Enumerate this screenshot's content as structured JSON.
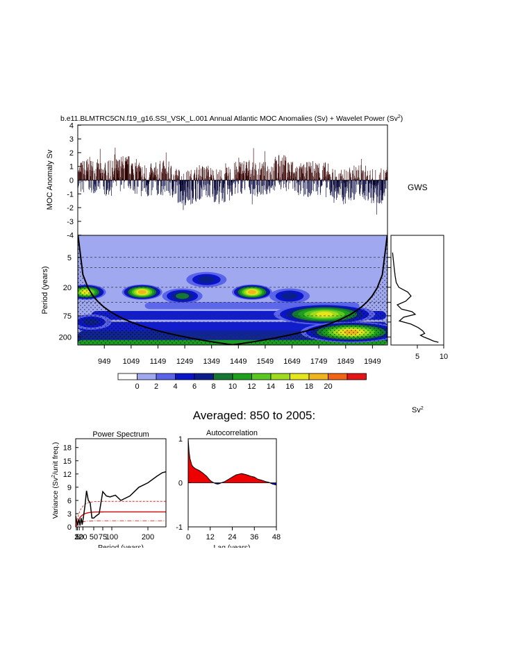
{
  "title": {
    "prefix": "b.e11.BLMTRC5CN.f19_g16.SSI_VSK_L.001 Annual Atlantic MOC Anomalies (Sv) + Wavelet Power (Sv",
    "sup": "2",
    "suffix": ")"
  },
  "gws_label": "GWS",
  "sv2_label": {
    "base": "Sv",
    "sup": "2"
  },
  "averaged_title": "Averaged: 850 to 2005:",
  "colors": {
    "positive": "#cc0000",
    "negative": "#0000cc",
    "contour_bg": "#a0a8f0"
  },
  "chart_data": [
    {
      "type": "bar",
      "name": "moc-anomaly",
      "ylabel": "MOC Anomaly Sv",
      "ylim": [
        -4,
        4
      ],
      "yticks": [
        "4",
        "3",
        "2",
        "1",
        "0",
        "-1",
        "-2",
        "-3",
        "-4"
      ],
      "xlim": [
        850,
        2005
      ],
      "series_note": "annual anomaly bars, red above zero, blue below zero"
    },
    {
      "type": "heatmap",
      "name": "wavelet-power",
      "ylabel": "Period (years)",
      "yticks": [
        {
          "label": "5",
          "value": 5
        },
        {
          "label": "20",
          "value": 20
        },
        {
          "label": "75",
          "value": 75
        },
        {
          "label": "200",
          "value": 200
        }
      ],
      "xticks": [
        "949",
        "1049",
        "1149",
        "1249",
        "1349",
        "1449",
        "1549",
        "1649",
        "1749",
        "1849",
        "1949"
      ],
      "xlim": [
        850,
        2005
      ],
      "colorbar": {
        "labels": [
          "0",
          "2",
          "4",
          "6",
          "8",
          "10",
          "12",
          "14",
          "16",
          "18",
          "20"
        ],
        "colors": [
          "#ffffff",
          "#a0a8f0",
          "#5a64e8",
          "#0a14c8",
          "#0a1e8c",
          "#147832",
          "#1ea01e",
          "#5ac81e",
          "#a0dc1e",
          "#e6e61e",
          "#f0b41e",
          "#f06414",
          "#e61414"
        ]
      },
      "blobs": [
        {
          "year": 880,
          "period": 25,
          "power": 16
        },
        {
          "year": 1090,
          "period": 25,
          "power": 18
        },
        {
          "year": 1240,
          "period": 30,
          "power": 8
        },
        {
          "year": 1330,
          "period": 14,
          "power": 6
        },
        {
          "year": 1500,
          "period": 25,
          "power": 18
        },
        {
          "year": 1640,
          "period": 30,
          "power": 6
        },
        {
          "year": 1770,
          "period": 70,
          "power": 16
        },
        {
          "year": 1870,
          "period": 160,
          "power": 18
        },
        {
          "year": 900,
          "period": 100,
          "power": 6
        }
      ]
    },
    {
      "type": "line",
      "name": "gws",
      "xticks": [
        "5",
        "10"
      ],
      "xlim": [
        0,
        10
      ],
      "points": [
        [
          0.3,
          4
        ],
        [
          0.6,
          8
        ],
        [
          0.8,
          12
        ],
        [
          1.0,
          16
        ],
        [
          1.5,
          20
        ],
        [
          3.2,
          25
        ],
        [
          3.8,
          30
        ],
        [
          2.8,
          38
        ],
        [
          1.2,
          45
        ],
        [
          2.0,
          55
        ],
        [
          4.0,
          62
        ],
        [
          4.6,
          70
        ],
        [
          2.4,
          80
        ],
        [
          1.6,
          95
        ],
        [
          3.8,
          110
        ],
        [
          5.2,
          130
        ],
        [
          6.0,
          150
        ],
        [
          6.4,
          170
        ],
        [
          5.6,
          185
        ],
        [
          6.2,
          200
        ],
        [
          7.2,
          220
        ],
        [
          8.0,
          240
        ],
        [
          9.0,
          256
        ]
      ]
    },
    {
      "type": "line",
      "name": "power-spectrum",
      "title": "Power Spectrum",
      "ylabel_prefix": "Variance (Sv",
      "ylabel_sup": "2",
      "ylabel_suffix": "/unit freq.)",
      "xlabel": "Period (years)",
      "xlim": [
        0,
        250
      ],
      "ylim": [
        0,
        20
      ],
      "yticks": [
        "0",
        "3",
        "6",
        "9",
        "12",
        "15",
        "18"
      ],
      "xtick_labels": [
        "2",
        "5",
        "10",
        "20",
        "50",
        "75",
        "100",
        "200"
      ],
      "xtick_values": [
        2,
        5,
        10,
        20,
        50,
        75,
        100,
        200
      ],
      "x": [
        0,
        3,
        6,
        9,
        12,
        15,
        18,
        22,
        26,
        30,
        35,
        40,
        45,
        50,
        57,
        65,
        75,
        85,
        95,
        110,
        125,
        150,
        175,
        200,
        225,
        240,
        250
      ],
      "values": [
        2.5,
        1.0,
        0.5,
        1.8,
        0.3,
        2.0,
        0.5,
        2.5,
        5.0,
        8.2,
        6.0,
        5.5,
        2.0,
        2.0,
        2.5,
        3.0,
        8.0,
        7.0,
        6.8,
        7.2,
        6.0,
        7.0,
        9.0,
        10.0,
        11.5,
        12.3,
        12.5
      ],
      "red_levels": [
        3.4,
        5.8,
        1.4
      ]
    },
    {
      "type": "area",
      "name": "autocorrelation",
      "title": "Autocorrelation",
      "xlabel": "Lag (years)",
      "xlim": [
        0,
        48
      ],
      "ylim": [
        -1,
        1
      ],
      "yticks": [
        "-1",
        "0",
        "1"
      ],
      "xticks": [
        "0",
        "12",
        "24",
        "36",
        "48"
      ],
      "x": [
        0,
        0.5,
        1,
        2,
        3,
        4,
        5,
        6,
        8,
        10,
        12,
        14,
        15,
        16,
        17,
        18,
        20,
        22,
        24,
        26,
        28,
        29,
        30,
        32,
        34,
        36,
        38,
        40,
        42,
        44,
        46,
        48
      ],
      "values": [
        1.0,
        0.7,
        0.55,
        0.4,
        0.35,
        0.32,
        0.3,
        0.28,
        0.22,
        0.15,
        0.05,
        0.0,
        -0.02,
        -0.03,
        -0.02,
        0.0,
        0.03,
        0.08,
        0.13,
        0.18,
        0.2,
        0.21,
        0.2,
        0.18,
        0.15,
        0.13,
        0.08,
        0.06,
        0.03,
        0.01,
        -0.03,
        -0.05
      ]
    }
  ]
}
